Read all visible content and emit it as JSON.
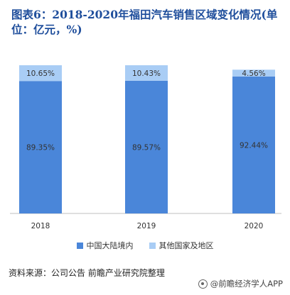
{
  "title": "图表6：2018-2020年福田汽车销售区域变化情况(单位：亿元，%)",
  "colors": {
    "domestic": "#4a86d9",
    "overseas": "#a9cdf5",
    "title": "#1f4e9c",
    "axis": "#bfbfbf"
  },
  "chart_data": {
    "type": "bar",
    "stacked": true,
    "categories": [
      "2018",
      "2019",
      "2020"
    ],
    "series": [
      {
        "name": "中国大陆境内",
        "values": [
          89.35,
          89.57,
          92.44
        ],
        "labels": [
          "89.35%",
          "89.57%",
          "92.44%"
        ],
        "color": "#4a86d9"
      },
      {
        "name": "其他国家及地区",
        "values": [
          10.65,
          10.43,
          4.56
        ],
        "labels": [
          "10.65%",
          "10.43%",
          "4.56%"
        ],
        "color": "#a9cdf5"
      }
    ],
    "ylim": [
      0,
      100
    ],
    "grid": false,
    "legend_position": "bottom"
  },
  "footer": {
    "source": "资料来源：公司公告  前瞻产业研究院整理",
    "watermark": "@前瞻经济学人APP"
  }
}
